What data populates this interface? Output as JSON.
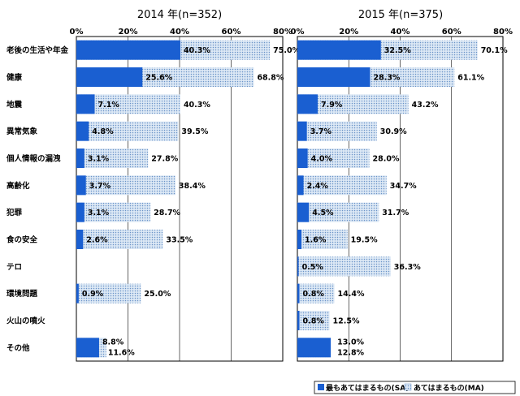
{
  "chart_data": [
    {
      "type": "bar",
      "title": "2014 年(n=352)",
      "xlim": [
        0,
        80
      ],
      "tick_labels": [
        "0%",
        "20%",
        "40%",
        "60%",
        "80%"
      ],
      "categories": [
        "老後の生活や年金",
        "健康",
        "地震",
        "異常気象",
        "個人情報の漏洩",
        "高齢化",
        "犯罪",
        "食の安全",
        "テロ",
        "環境問題",
        "火山の噴火",
        "その他"
      ],
      "series": [
        {
          "name": "最もあてはまるもの(SA)",
          "values": [
            40.3,
            25.6,
            7.1,
            4.8,
            3.1,
            3.7,
            3.1,
            2.6,
            null,
            0.9,
            null,
            8.8
          ]
        },
        {
          "name": "あてはまるもの(MA)",
          "values": [
            75.0,
            68.8,
            40.3,
            39.5,
            27.8,
            38.4,
            28.7,
            33.5,
            null,
            25.0,
            null,
            11.6
          ]
        }
      ],
      "labels_sa": [
        "40.3%",
        "25.6%",
        "7.1%",
        "4.8%",
        "3.1%",
        "3.7%",
        "3.1%",
        "2.6%",
        "",
        "0.9%",
        "",
        "8.8%"
      ],
      "labels_ma": [
        "75.0%",
        "68.8%",
        "40.3%",
        "39.5%",
        "27.8%",
        "38.4%",
        "28.7%",
        "33.5%",
        "",
        "25.0%",
        "",
        "11.6%"
      ]
    },
    {
      "type": "bar",
      "title": "2015 年(n=375)",
      "xlim": [
        0,
        80
      ],
      "tick_labels": [
        "0%",
        "20%",
        "40%",
        "60%",
        "80%"
      ],
      "categories": [
        "老後の生活や年金",
        "健康",
        "地震",
        "異常気象",
        "個人情報の漏洩",
        "高齢化",
        "犯罪",
        "食の安全",
        "テロ",
        "環境問題",
        "火山の噴火",
        "その他"
      ],
      "series": [
        {
          "name": "最もあてはまるもの(SA)",
          "values": [
            32.5,
            28.3,
            7.9,
            3.7,
            4.0,
            2.4,
            4.5,
            1.6,
            0.5,
            0.8,
            0.8,
            13.0
          ]
        },
        {
          "name": "あてはまるもの(MA)",
          "values": [
            70.1,
            61.1,
            43.2,
            30.9,
            28.0,
            34.7,
            31.7,
            19.5,
            36.3,
            14.4,
            12.5,
            12.8
          ]
        }
      ],
      "labels_sa": [
        "32.5%",
        "28.3%",
        "7.9%",
        "3.7%",
        "4.0%",
        "2.4%",
        "4.5%",
        "1.6%",
        "0.5%",
        "0.8%",
        "0.8%",
        "13.0%"
      ],
      "labels_ma": [
        "70.1%",
        "61.1%",
        "43.2%",
        "30.9%",
        "28.0%",
        "34.7%",
        "31.7%",
        "19.5%",
        "36.3%",
        "14.4%",
        "12.5%",
        "12.8%"
      ]
    }
  ],
  "legend": {
    "sa_label": "最もあてはまるもの(SA)",
    "ma_label": "あてはまるもの(MA)"
  },
  "colors": {
    "sa": "#1a5fd1",
    "ma_fill": "#dce8f5",
    "ma_dot": "#6a93c8",
    "grid": "#000000",
    "frame": "#000000"
  }
}
